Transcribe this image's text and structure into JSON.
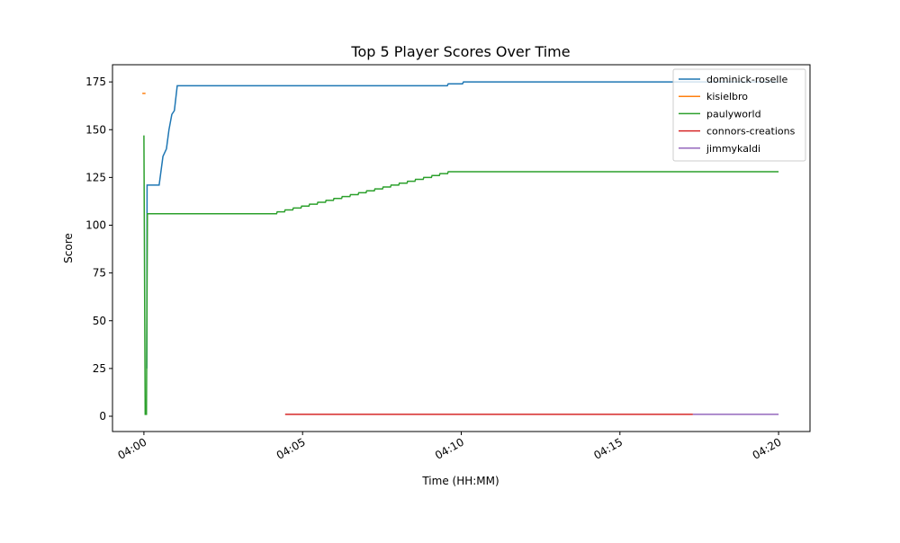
{
  "chart_data": {
    "type": "line",
    "title": "Top 5 Player Scores Over Time",
    "x_label": "Time (HH:MM)",
    "y_label": "Score",
    "xlim": [
      -0.99,
      20.99
    ],
    "ylim": [
      -8,
      184
    ],
    "xticks": [
      {
        "value": 0,
        "label": "04:00"
      },
      {
        "value": 5,
        "label": "04:05"
      },
      {
        "value": 10,
        "label": "04:10"
      },
      {
        "value": 15,
        "label": "04:15"
      },
      {
        "value": 20,
        "label": "04:20"
      }
    ],
    "yticks": [
      0,
      25,
      50,
      75,
      100,
      125,
      150,
      175
    ],
    "legend": "upper right",
    "grid": false,
    "series": [
      {
        "name": "dominick-roselle",
        "color": "#1f77b4",
        "x": [
          0.09,
          0.1,
          0.48,
          0.6,
          0.71,
          0.79,
          0.88,
          0.96,
          1.05,
          9.56,
          9.59,
          10.04,
          10.07,
          20.0
        ],
        "values": [
          25,
          121,
          121,
          136,
          140,
          150,
          158,
          160,
          173,
          173,
          174,
          174,
          175,
          175
        ]
      },
      {
        "name": "kisielbro",
        "color": "#ff7f0e",
        "x": [
          -0.05,
          0.05
        ],
        "values": [
          169,
          169
        ]
      },
      {
        "name": "paulyworld",
        "color": "#2ca02c",
        "x": [
          0,
          0.04,
          0.08,
          0.11,
          4.18,
          4.2,
          4.43,
          4.45,
          4.69,
          4.71,
          4.95,
          4.97,
          5.2,
          5.22,
          5.46,
          5.48,
          5.72,
          5.74,
          5.97,
          5.99,
          6.23,
          6.25,
          6.49,
          6.51,
          6.75,
          6.77,
          7.0,
          7.02,
          7.26,
          7.28,
          7.52,
          7.54,
          7.77,
          7.79,
          8.03,
          8.05,
          8.29,
          8.31,
          8.54,
          8.56,
          8.8,
          8.82,
          9.06,
          9.08,
          9.31,
          9.33,
          9.57,
          9.59,
          20.0
        ],
        "values": [
          147,
          1,
          1,
          106,
          106,
          107,
          107,
          108,
          108,
          109,
          109,
          110,
          110,
          111,
          111,
          112,
          112,
          113,
          113,
          114,
          114,
          115,
          115,
          116,
          116,
          117,
          117,
          118,
          118,
          119,
          119,
          120,
          120,
          121,
          121,
          122,
          122,
          123,
          123,
          124,
          124,
          125,
          125,
          126,
          126,
          127,
          127,
          128,
          128
        ]
      },
      {
        "name": "connors-creations",
        "color": "#d62728",
        "x": [
          4.45,
          17.3
        ],
        "values": [
          1,
          1
        ]
      },
      {
        "name": "jimmykaldi",
        "color": "#9467bd",
        "x": [
          17.3,
          20.0
        ],
        "values": [
          1,
          1
        ]
      }
    ]
  }
}
